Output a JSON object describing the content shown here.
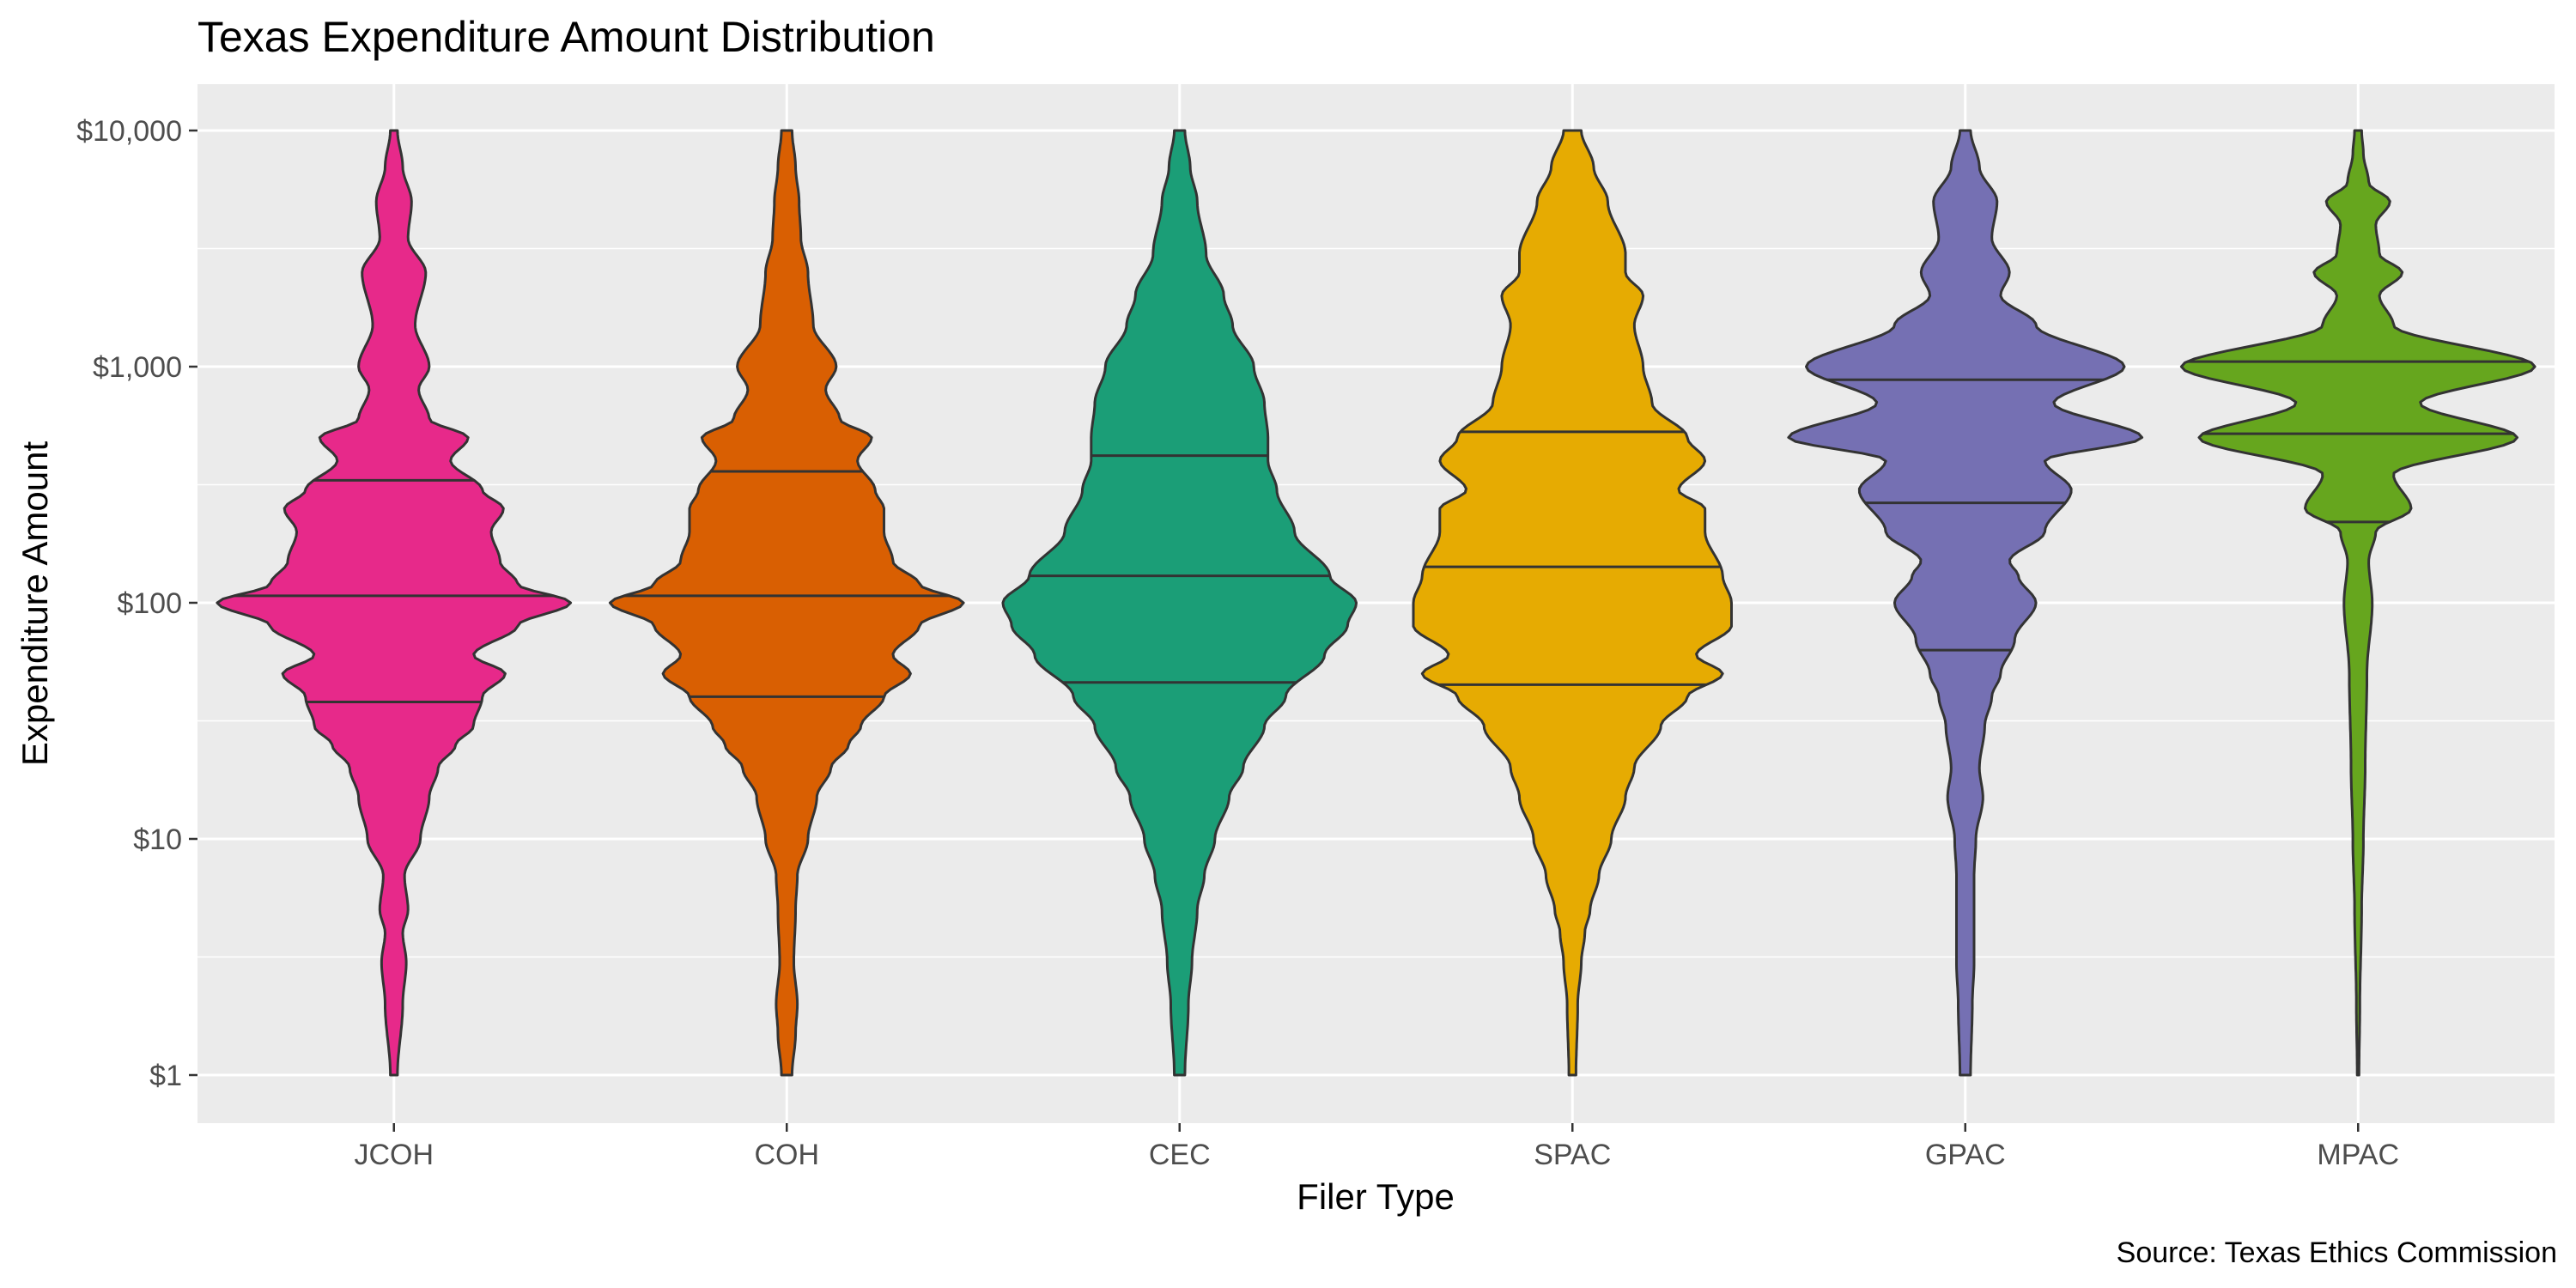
{
  "chart_data": {
    "type": "violin",
    "title": "Texas Expenditure Amount Distribution",
    "xlabel": "Filer Type",
    "ylabel": "Expenditure Amount",
    "caption": "Source: Texas Ethics Commission",
    "y_scale": "log10",
    "ylim": [
      1,
      10000
    ],
    "y_ticks": [
      {
        "value": 1,
        "label": "$1"
      },
      {
        "value": 10,
        "label": "$10"
      },
      {
        "value": 100,
        "label": "$100"
      },
      {
        "value": 1000,
        "label": "$1,000"
      },
      {
        "value": 10000,
        "label": "$10,000"
      }
    ],
    "grid": true,
    "legend": "none",
    "categories": [
      "JCOH",
      "COH",
      "CEC",
      "SPAC",
      "GPAC",
      "MPAC"
    ],
    "series": [
      {
        "category": "JCOH",
        "color": "#E7298A",
        "quantiles": {
          "q25": 38,
          "median": 107,
          "q75": 330
        },
        "density": [
          [
            1,
            0.02
          ],
          [
            2,
            0.05
          ],
          [
            3,
            0.07
          ],
          [
            4,
            0.05
          ],
          [
            5,
            0.08
          ],
          [
            7,
            0.06
          ],
          [
            10,
            0.15
          ],
          [
            15,
            0.2
          ],
          [
            20,
            0.25
          ],
          [
            25,
            0.35
          ],
          [
            30,
            0.45
          ],
          [
            40,
            0.5
          ],
          [
            50,
            0.63
          ],
          [
            60,
            0.45
          ],
          [
            80,
            0.7
          ],
          [
            100,
            1.0
          ],
          [
            120,
            0.7
          ],
          [
            150,
            0.6
          ],
          [
            200,
            0.55
          ],
          [
            250,
            0.62
          ],
          [
            300,
            0.5
          ],
          [
            400,
            0.32
          ],
          [
            500,
            0.42
          ],
          [
            600,
            0.2
          ],
          [
            800,
            0.14
          ],
          [
            1000,
            0.2
          ],
          [
            1500,
            0.12
          ],
          [
            2500,
            0.18
          ],
          [
            3500,
            0.08
          ],
          [
            5000,
            0.1
          ],
          [
            7000,
            0.05
          ],
          [
            10000,
            0.02
          ]
        ]
      },
      {
        "category": "COH",
        "color": "#D95F02",
        "quantiles": {
          "q25": 40,
          "median": 107,
          "q75": 360
        },
        "density": [
          [
            1,
            0.03
          ],
          [
            1.5,
            0.05
          ],
          [
            2,
            0.06
          ],
          [
            3,
            0.04
          ],
          [
            5,
            0.05
          ],
          [
            7,
            0.06
          ],
          [
            10,
            0.12
          ],
          [
            15,
            0.17
          ],
          [
            20,
            0.25
          ],
          [
            25,
            0.35
          ],
          [
            30,
            0.42
          ],
          [
            40,
            0.55
          ],
          [
            50,
            0.7
          ],
          [
            60,
            0.6
          ],
          [
            80,
            0.75
          ],
          [
            100,
            1.0
          ],
          [
            120,
            0.75
          ],
          [
            150,
            0.6
          ],
          [
            200,
            0.55
          ],
          [
            250,
            0.55
          ],
          [
            300,
            0.5
          ],
          [
            400,
            0.4
          ],
          [
            500,
            0.48
          ],
          [
            600,
            0.3
          ],
          [
            800,
            0.22
          ],
          [
            1000,
            0.28
          ],
          [
            1500,
            0.15
          ],
          [
            2500,
            0.12
          ],
          [
            3500,
            0.08
          ],
          [
            5000,
            0.07
          ],
          [
            7000,
            0.05
          ],
          [
            10000,
            0.03
          ]
        ]
      },
      {
        "category": "CEC",
        "color": "#1B9E77",
        "quantiles": {
          "q25": 46,
          "median": 130,
          "q75": 420
        },
        "density": [
          [
            1,
            0.03
          ],
          [
            2,
            0.05
          ],
          [
            3,
            0.07
          ],
          [
            5,
            0.1
          ],
          [
            7,
            0.14
          ],
          [
            10,
            0.2
          ],
          [
            15,
            0.28
          ],
          [
            20,
            0.36
          ],
          [
            30,
            0.48
          ],
          [
            40,
            0.6
          ],
          [
            60,
            0.82
          ],
          [
            80,
            0.95
          ],
          [
            100,
            1.0
          ],
          [
            130,
            0.85
          ],
          [
            200,
            0.65
          ],
          [
            300,
            0.55
          ],
          [
            400,
            0.5
          ],
          [
            500,
            0.5
          ],
          [
            700,
            0.48
          ],
          [
            1000,
            0.42
          ],
          [
            1500,
            0.3
          ],
          [
            2000,
            0.25
          ],
          [
            3000,
            0.15
          ],
          [
            5000,
            0.1
          ],
          [
            7000,
            0.06
          ],
          [
            10000,
            0.03
          ]
        ]
      },
      {
        "category": "SPAC",
        "color": "#E6AB02",
        "quantiles": {
          "q25": 45,
          "median": 142,
          "q75": 530
        },
        "density": [
          [
            1,
            0.02
          ],
          [
            2,
            0.03
          ],
          [
            3,
            0.05
          ],
          [
            4,
            0.07
          ],
          [
            5,
            0.1
          ],
          [
            7,
            0.15
          ],
          [
            10,
            0.22
          ],
          [
            15,
            0.3
          ],
          [
            20,
            0.35
          ],
          [
            30,
            0.5
          ],
          [
            40,
            0.65
          ],
          [
            50,
            0.85
          ],
          [
            60,
            0.7
          ],
          [
            80,
            0.9
          ],
          [
            100,
            0.9
          ],
          [
            130,
            0.85
          ],
          [
            200,
            0.75
          ],
          [
            250,
            0.75
          ],
          [
            300,
            0.6
          ],
          [
            400,
            0.75
          ],
          [
            500,
            0.65
          ],
          [
            700,
            0.45
          ],
          [
            1000,
            0.4
          ],
          [
            1500,
            0.35
          ],
          [
            2000,
            0.4
          ],
          [
            2500,
            0.3
          ],
          [
            3000,
            0.3
          ],
          [
            5000,
            0.2
          ],
          [
            7000,
            0.12
          ],
          [
            10000,
            0.05
          ]
        ]
      },
      {
        "category": "GPAC",
        "color": "#7570B3",
        "quantiles": {
          "q25": 63,
          "median": 265,
          "q75": 880
        },
        "density": [
          [
            1,
            0.03
          ],
          [
            2,
            0.04
          ],
          [
            3,
            0.05
          ],
          [
            5,
            0.05
          ],
          [
            7,
            0.05
          ],
          [
            10,
            0.06
          ],
          [
            15,
            0.1
          ],
          [
            20,
            0.08
          ],
          [
            30,
            0.11
          ],
          [
            40,
            0.15
          ],
          [
            50,
            0.2
          ],
          [
            70,
            0.28
          ],
          [
            100,
            0.4
          ],
          [
            130,
            0.3
          ],
          [
            150,
            0.25
          ],
          [
            200,
            0.45
          ],
          [
            300,
            0.6
          ],
          [
            400,
            0.45
          ],
          [
            500,
            1.0
          ],
          [
            700,
            0.5
          ],
          [
            1000,
            0.9
          ],
          [
            1500,
            0.4
          ],
          [
            2000,
            0.2
          ],
          [
            2500,
            0.25
          ],
          [
            3500,
            0.15
          ],
          [
            5000,
            0.18
          ],
          [
            7000,
            0.08
          ],
          [
            10000,
            0.03
          ]
        ]
      },
      {
        "category": "MPAC",
        "color": "#66A61E",
        "quantiles": {
          "q25": 220,
          "median": 520,
          "q75": 1050
        },
        "density": [
          [
            1,
            0.005
          ],
          [
            2,
            0.01
          ],
          [
            5,
            0.02
          ],
          [
            10,
            0.03
          ],
          [
            20,
            0.04
          ],
          [
            50,
            0.05
          ],
          [
            100,
            0.08
          ],
          [
            150,
            0.06
          ],
          [
            200,
            0.1
          ],
          [
            250,
            0.3
          ],
          [
            350,
            0.2
          ],
          [
            500,
            0.9
          ],
          [
            700,
            0.35
          ],
          [
            1000,
            1.0
          ],
          [
            1500,
            0.2
          ],
          [
            2000,
            0.12
          ],
          [
            2500,
            0.25
          ],
          [
            3000,
            0.12
          ],
          [
            4000,
            0.1
          ],
          [
            5000,
            0.18
          ],
          [
            6000,
            0.06
          ],
          [
            8000,
            0.03
          ],
          [
            10000,
            0.02
          ]
        ]
      }
    ]
  }
}
